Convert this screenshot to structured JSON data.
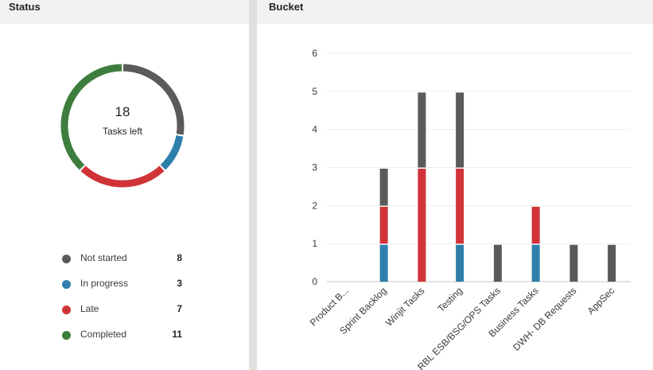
{
  "status": {
    "title": "Status",
    "center_count": "18",
    "center_label": "Tasks left",
    "items": [
      {
        "label": "Not started",
        "count": 8,
        "color": "#5a5a5a"
      },
      {
        "label": "In progress",
        "count": 3,
        "color": "#2e7fab"
      },
      {
        "label": "Late",
        "count": 7,
        "color": "#d13438"
      },
      {
        "label": "Completed",
        "count": 11,
        "color": "#3d7d3d"
      }
    ]
  },
  "bucket": {
    "title": "Bucket"
  },
  "chart_data": [
    {
      "type": "pie",
      "categories": [
        "Not started",
        "In progress",
        "Late",
        "Completed"
      ],
      "values": [
        8,
        3,
        7,
        11
      ],
      "colors": [
        "#5a5a5a",
        "#2e7fab",
        "#d13438",
        "#3d7d3d"
      ]
    },
    {
      "type": "bar",
      "stacked": true,
      "categories": [
        "Product B...",
        "Sprint Backlog",
        "Winjit Tasks",
        "Testing",
        "RBL ESB/BSG/OPS Tasks",
        "Business Tasks",
        "DWH- DB Requests",
        "AppSec"
      ],
      "series": [
        {
          "values": [
            0,
            1,
            0,
            1,
            0,
            1,
            0,
            0
          ],
          "color": "#2e7fab"
        },
        {
          "values": [
            0,
            1,
            3,
            2,
            0,
            1,
            0,
            0
          ],
          "color": "#d13438"
        },
        {
          "values": [
            0,
            1,
            2,
            2,
            1,
            0,
            1,
            1
          ],
          "color": "#5a5a5a"
        }
      ],
      "ylim": [
        0,
        6
      ],
      "yticks": [
        "0",
        "1",
        "2",
        "3",
        "4",
        "5",
        "6"
      ],
      "grid": true
    }
  ]
}
